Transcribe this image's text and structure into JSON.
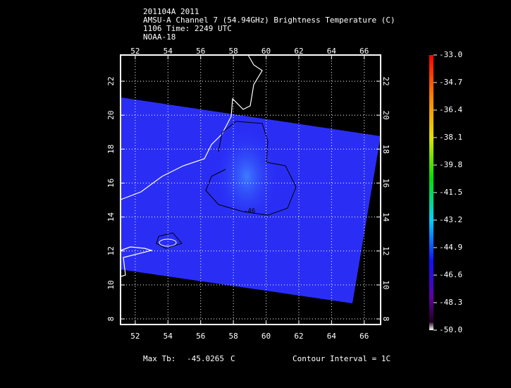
{
  "header": {
    "line1": "201104A 2011",
    "line2": "AMSU-A Channel 7 (54.94GHz) Brightness Temperature (C)",
    "line3": "1106 Time: 2249 UTC",
    "line4": "NOAA-18"
  },
  "map": {
    "lon_lim": [
      51.1,
      67.0
    ],
    "lat_lim": [
      7.67,
      23.54
    ],
    "lon_ticks": [
      52,
      54,
      56,
      58,
      60,
      62,
      64,
      66
    ],
    "lat_ticks": [
      8,
      10,
      12,
      14,
      16,
      18,
      20,
      22
    ],
    "grid": true,
    "contour_label": "-46"
  },
  "colorbar": {
    "lim": [
      -50,
      -33
    ],
    "ticks": [
      {
        "value": -33,
        "label": "-33.0"
      },
      -34.7,
      -36.4,
      -38.1,
      -39.8,
      -41.5,
      -43.2,
      -44.9,
      -46.6,
      -48.3,
      {
        "value": -50,
        "label": "-50.0"
      }
    ]
  },
  "footer": {
    "max_label": "Max Tb:",
    "max_value": -45.0265,
    "max_unit": "C",
    "contour_interval": "Contour Interval = 1C"
  }
}
